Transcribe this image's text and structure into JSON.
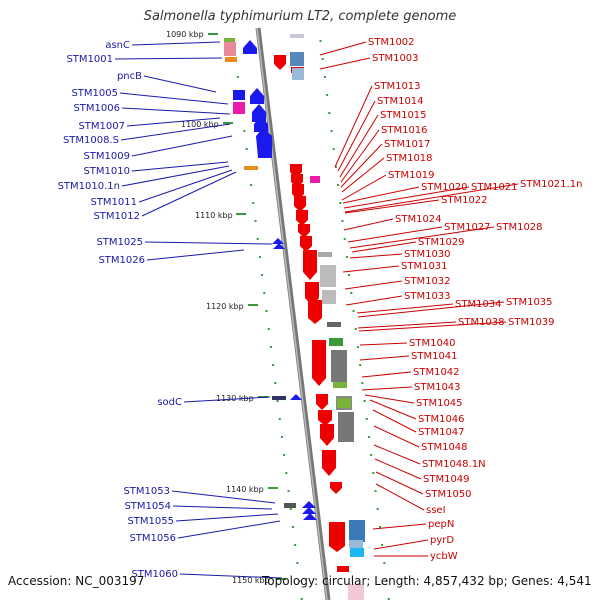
{
  "title": "Salmonella typhimurium LT2, complete genome",
  "footer": {
    "accession": "Accession: NC_003197",
    "topology": "Topology: circular; Length: 4,857,432 bp; Genes: 4,541"
  },
  "colors": {
    "left_label": "#1a1aaa",
    "right_label": "#cc0000",
    "axis": "#888888",
    "tick": "#3a9a3a"
  },
  "kbp_ticks": [
    {
      "label": "1090 kbp",
      "kbp": 1090
    },
    {
      "label": "1100 kbp",
      "kbp": 1100
    },
    {
      "label": "1110 kbp",
      "kbp": 1110
    },
    {
      "label": "1120 kbp",
      "kbp": 1120
    },
    {
      "label": "1130 kbp",
      "kbp": 1130
    },
    {
      "label": "1140 kbp",
      "kbp": 1140
    },
    {
      "label": "1150 kbp",
      "kbp": 1150
    }
  ],
  "left_genes": [
    "asnC",
    "STM1001",
    "pncB",
    "STM1005",
    "STM1006",
    "STM1007",
    "STM1008.S",
    "STM1009",
    "STM1010",
    "STM1010.1n",
    "STM1011",
    "STM1012",
    "STM1025",
    "STM1026",
    "sodC",
    "STM1053",
    "STM1054",
    "STM1055",
    "STM1056",
    "STM1060"
  ],
  "right_genes": [
    "STM1002",
    "STM1003",
    "STM1013",
    "STM1014",
    "STM1015",
    "STM1016",
    "STM1017",
    "STM1018",
    "STM1019",
    "STM1020",
    "STM1021",
    "STM1021.1n",
    "STM1022",
    "STM1024",
    "STM1027",
    "STM1028",
    "STM1029",
    "STM1030",
    "STM1031",
    "STM1032",
    "STM1033",
    "STM1034",
    "STM1035",
    "STM1038",
    "STM1039",
    "STM1040",
    "STM1041",
    "STM1042",
    "STM1043",
    "STM1045",
    "STM1046",
    "STM1047",
    "STM1048",
    "STM1048.1N",
    "STM1049",
    "STM1050",
    "sseI",
    "pepN",
    "pyrD",
    "ycbW"
  ]
}
